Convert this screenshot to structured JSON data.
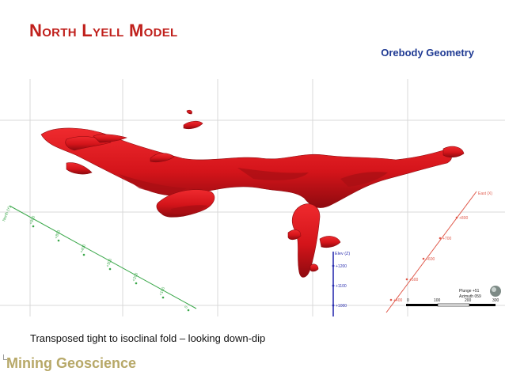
{
  "slide": {
    "title": "North Lyell Model",
    "subtitle": "Orebody Geometry",
    "caption": "Transposed tight to isoclinal fold – looking down-dip",
    "brand": "Mining Geoscience"
  },
  "scene": {
    "north_axis": {
      "label": "North (Y)",
      "ticks": [
        "+900",
        "+800",
        "+400",
        "+300",
        "+200",
        "+100",
        "0",
        "-100"
      ]
    },
    "elev_axis": {
      "label": "Elev (Z)",
      "ticks": [
        "+1200",
        "+1100",
        "+1000"
      ]
    },
    "east_axis": {
      "label": "East (X)",
      "ticks": [
        "+800",
        "+700",
        "+600",
        "+500",
        "+400"
      ]
    },
    "scale_bar": {
      "ticks": [
        "0",
        "100",
        "200",
        "300"
      ]
    },
    "orientation": {
      "plunge": "Plunge +51",
      "azimuth": "Azimuth 059"
    },
    "colors": {
      "orebody": "#d4141a",
      "orebody_dark": "#8e0a0f",
      "north_axis": "#3aa84a",
      "elev_axis": "#2b2fb0",
      "east_axis": "#e05a4c",
      "grid": "#d8d8d8"
    }
  }
}
